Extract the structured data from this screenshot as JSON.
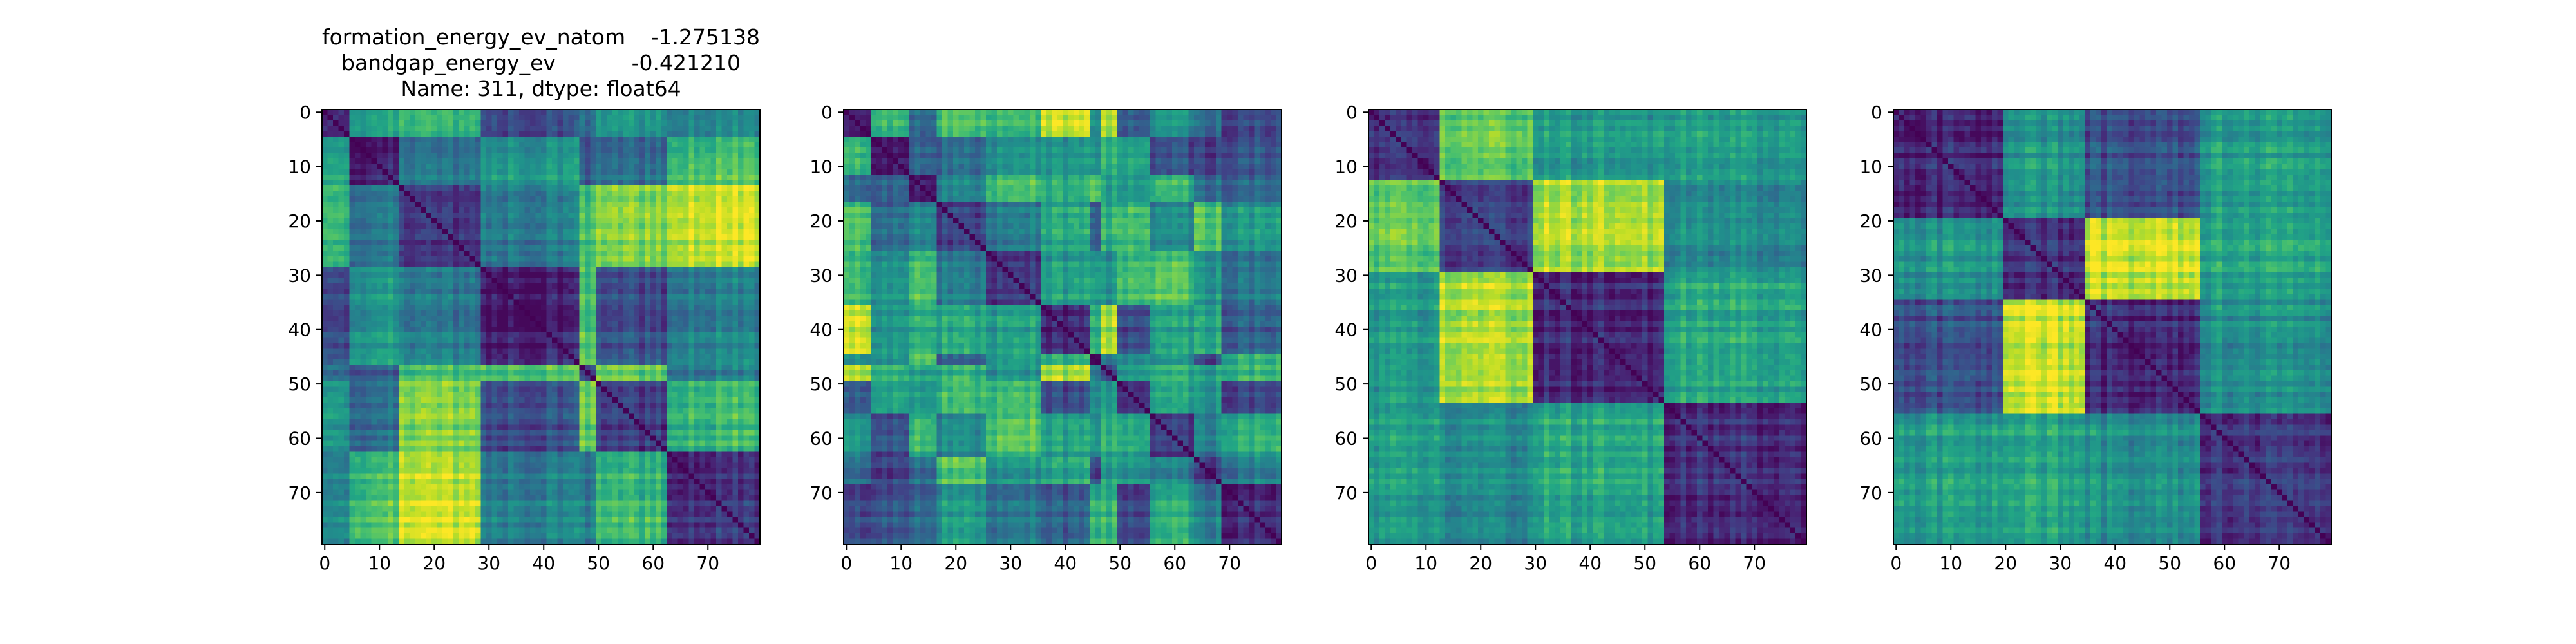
{
  "figure_title": {
    "rows": [
      {
        "key": "formation_energy_ev_natom",
        "value": "-1.275138"
      },
      {
        "key": "bandgap_energy_ev",
        "value": "-0.421210"
      }
    ],
    "footer": "Name: 311, dtype: float64"
  },
  "colors": {
    "colormap": "viridis",
    "low": "#440154",
    "mid": "#21918c",
    "high": "#fde725",
    "axis": "#000000",
    "background": "#ffffff"
  },
  "chart_data": [
    {
      "type": "heatmap",
      "title": "",
      "xlabel": "",
      "ylabel": "",
      "size": 80,
      "x_ticks": [
        0,
        10,
        20,
        30,
        40,
        50,
        60,
        70
      ],
      "y_ticks": [
        0,
        10,
        20,
        30,
        40,
        50,
        60,
        70
      ],
      "xlim": [
        0,
        79
      ],
      "ylim": [
        79,
        0
      ],
      "diagonal": "zero distance (dark)",
      "block_boundaries": [
        5,
        14,
        29,
        47,
        50,
        63
      ],
      "description": "distance-like matrix; low values near diagonal, bright bands between blocks"
    },
    {
      "type": "heatmap",
      "title": "",
      "size": 80,
      "x_ticks": [
        0,
        10,
        20,
        30,
        40,
        50,
        60,
        70
      ],
      "y_ticks": [
        0,
        10,
        20,
        30,
        40,
        50,
        60,
        70
      ],
      "xlim": [
        0,
        79
      ],
      "ylim": [
        79,
        0
      ],
      "block_boundaries": [
        5,
        12,
        17,
        26,
        36,
        45,
        47,
        50,
        56,
        64,
        69
      ],
      "description": "checkerboard-like block structure with bright cells near rows 40-47"
    },
    {
      "type": "heatmap",
      "title": "",
      "size": 80,
      "x_ticks": [
        0,
        10,
        20,
        30,
        40,
        50,
        60,
        70
      ],
      "y_ticks": [
        0,
        10,
        20,
        30,
        40,
        50,
        60,
        70
      ],
      "xlim": [
        0,
        79
      ],
      "ylim": [
        79,
        0
      ],
      "block_boundaries": [
        13,
        30,
        54
      ],
      "description": "four diagonal blocks; bright off-diagonal region between rows 0-30 and cols 30-54"
    },
    {
      "type": "heatmap",
      "title": "",
      "size": 80,
      "x_ticks": [
        0,
        10,
        20,
        30,
        40,
        50,
        60,
        70
      ],
      "y_ticks": [
        0,
        10,
        20,
        30,
        40,
        50,
        60,
        70
      ],
      "xlim": [
        0,
        79
      ],
      "ylim": [
        79,
        0
      ],
      "block_boundaries": [
        20,
        35,
        56
      ],
      "description": "two main blocks split at 35; bright region rows 35-56, cols 20-35"
    }
  ]
}
